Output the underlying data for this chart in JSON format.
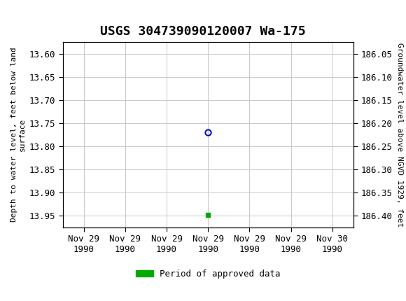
{
  "title": "USGS 304739090120007 Wa-175",
  "ylabel_left": "Depth to water level, feet below land\nsurface",
  "ylabel_right": "Groundwater level above NGVD 1929, feet",
  "ylim_left": [
    13.575,
    13.975
  ],
  "ylim_right_top": 186.4,
  "ylim_right_bottom": 186.05,
  "y_ticks_left": [
    13.6,
    13.65,
    13.7,
    13.75,
    13.8,
    13.85,
    13.9,
    13.95
  ],
  "y_ticks_right": [
    186.4,
    186.35,
    186.3,
    186.25,
    186.2,
    186.15,
    186.1,
    186.05
  ],
  "data_point_x": 3,
  "data_point_y": 13.77,
  "data_point_color": "#0000cc",
  "data_point_markersize": 6,
  "approved_x": 3,
  "approved_y": 13.948,
  "approved_color": "#00aa00",
  "approved_markersize": 4,
  "x_tick_labels": [
    "Nov 29\n1990",
    "Nov 29\n1990",
    "Nov 29\n1990",
    "Nov 29\n1990",
    "Nov 29\n1990",
    "Nov 29\n1990",
    "Nov 30\n1990"
  ],
  "x_tick_positions": [
    0,
    1,
    2,
    3,
    4,
    5,
    6
  ],
  "xlim": [
    -0.5,
    6.5
  ],
  "grid_color": "#c8c8c8",
  "header_bg_color": "#006633",
  "header_text_color": "#ffffff",
  "legend_label": "Period of approved data",
  "legend_color": "#00aa00",
  "background_color": "#ffffff",
  "title_fontsize": 13,
  "tick_fontsize": 9,
  "label_fontsize": 8
}
